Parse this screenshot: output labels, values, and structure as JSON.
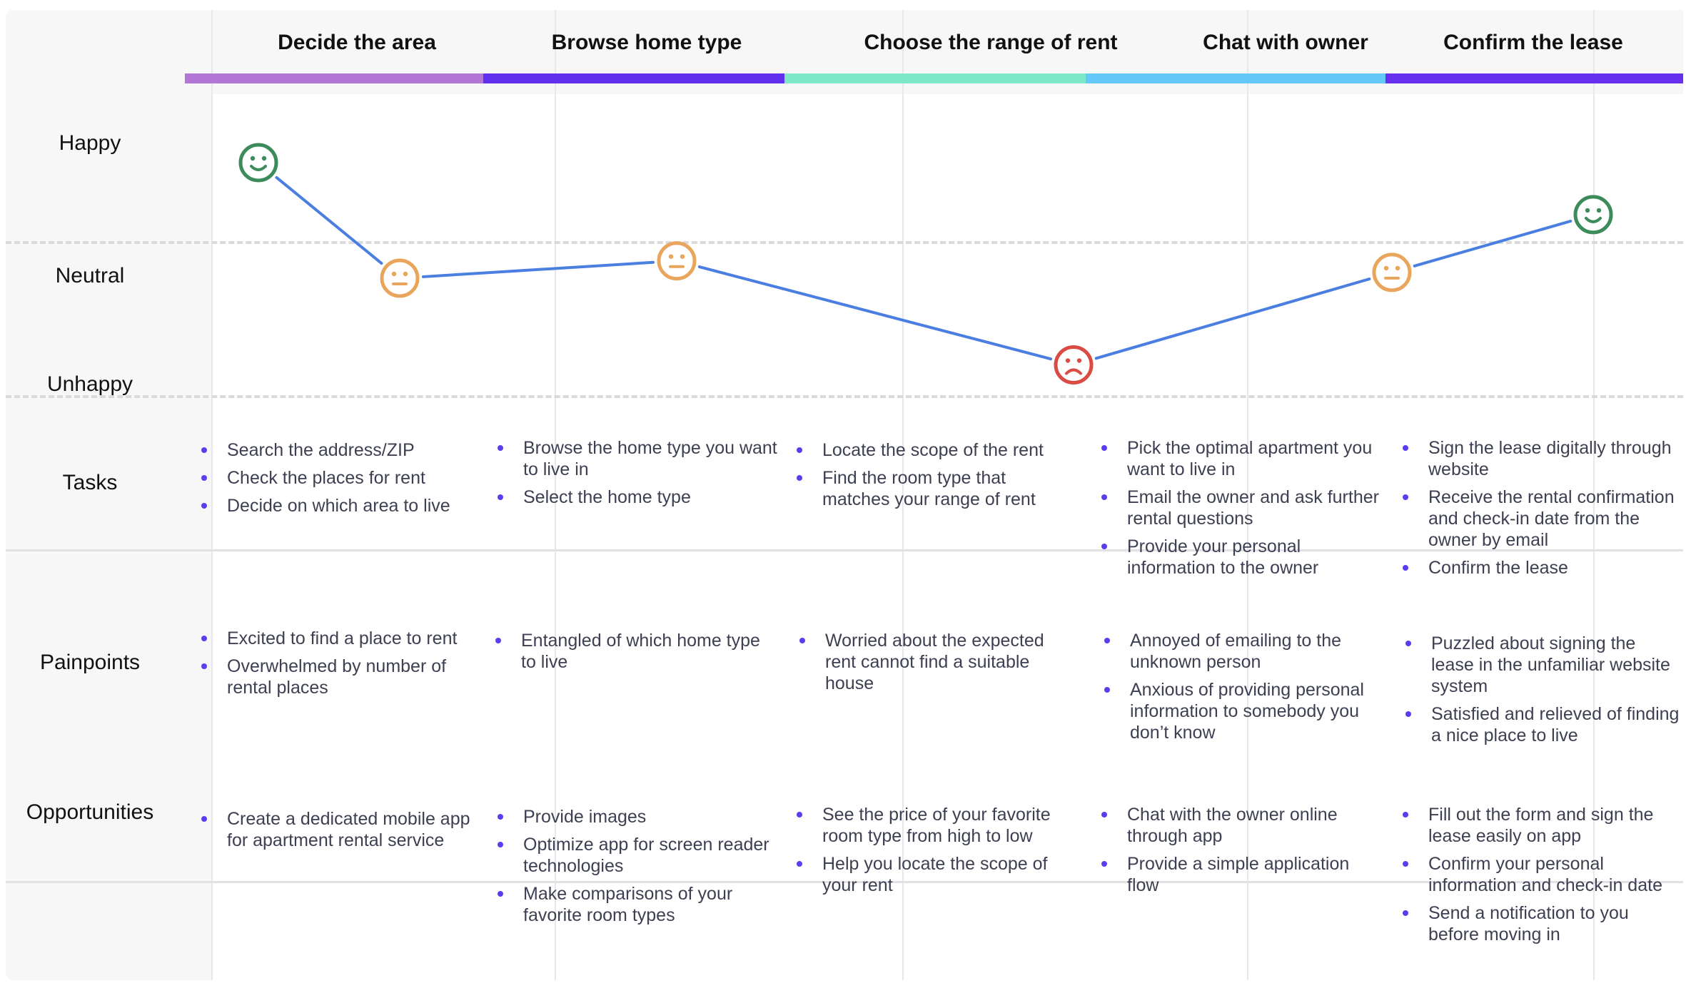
{
  "colors": {
    "line": "#4a7ee0",
    "happy": "#3c8b5a",
    "neutral": "#eaa55c",
    "unhappy": "#d94c44",
    "bullet": "#5b3df0"
  },
  "stages": [
    {
      "title": "Decide the area",
      "bar_color": "#b277d6"
    },
    {
      "title": "Browse home type",
      "bar_color": "#6030ee"
    },
    {
      "title": "Choose the range of rent",
      "bar_color": "#7ee8c8"
    },
    {
      "title": "Chat with owner",
      "bar_color": "#63c8fa"
    },
    {
      "title": "Confirm the lease",
      "bar_color": "#6630ee"
    }
  ],
  "emotion_levels": [
    "Happy",
    "Neutral",
    "Unhappy"
  ],
  "emotion_points": [
    {
      "stage": "Decide the area",
      "mood": "happy",
      "score": 1.0
    },
    {
      "stage": "Decide the area",
      "mood": "neutral",
      "score": 0.0
    },
    {
      "stage": "Browse home type",
      "mood": "neutral",
      "score": 0.15
    },
    {
      "stage": "Choose the range of rent",
      "mood": "unhappy",
      "score": -0.75
    },
    {
      "stage": "Chat with owner",
      "mood": "neutral",
      "score": 0.05
    },
    {
      "stage": "Confirm the lease",
      "mood": "happy",
      "score": 0.55
    }
  ],
  "rows": {
    "tasks": {
      "label": "Tasks",
      "columns": [
        [
          "Search the address/ZIP",
          "Check the places for rent",
          "Decide on which area to live"
        ],
        [
          "Browse the home type you want to live in",
          "Select the home type"
        ],
        [
          "Locate the scope of the rent",
          "Find the room type that matches your range of rent"
        ],
        [
          "Pick the optimal apartment you want to live in",
          "Email the owner and ask further rental  questions",
          "Provide your personal information to the owner"
        ],
        [
          "Sign the lease digitally through website",
          "Receive the rental confirmation and check-in date from the owner by email",
          "Confirm the lease"
        ]
      ]
    },
    "painpoints": {
      "label": "Painpoints",
      "columns": [
        [
          "Excited to find a place to rent",
          "Overwhelmed by number of rental places"
        ],
        [
          "Entangled of which home type to live"
        ],
        [
          "Worried about the expected rent cannot find a suitable house"
        ],
        [
          "Annoyed of emailing to the unknown person",
          "Anxious of providing personal information to somebody you don’t know"
        ],
        [
          "Puzzled about signing the lease in the unfamiliar website system",
          "Satisfied and relieved of finding a nice place to live"
        ]
      ]
    },
    "opportunities": {
      "label": "Opportunities",
      "columns": [
        [
          "Create a dedicated mobile app for apartment rental service"
        ],
        [
          "Provide images",
          "Optimize app for screen reader technologies",
          "Make comparisons of your favorite room types"
        ],
        [
          "See the price of your favorite room type from high to low",
          "Help you locate the scope of your rent"
        ],
        [
          "Chat with the owner online through app",
          "Provide a simple application flow"
        ],
        [
          "Fill out the form and sign the lease easily on app",
          "Confirm your personal information and check-in date",
          "Send a notification to you before moving in"
        ]
      ]
    }
  }
}
